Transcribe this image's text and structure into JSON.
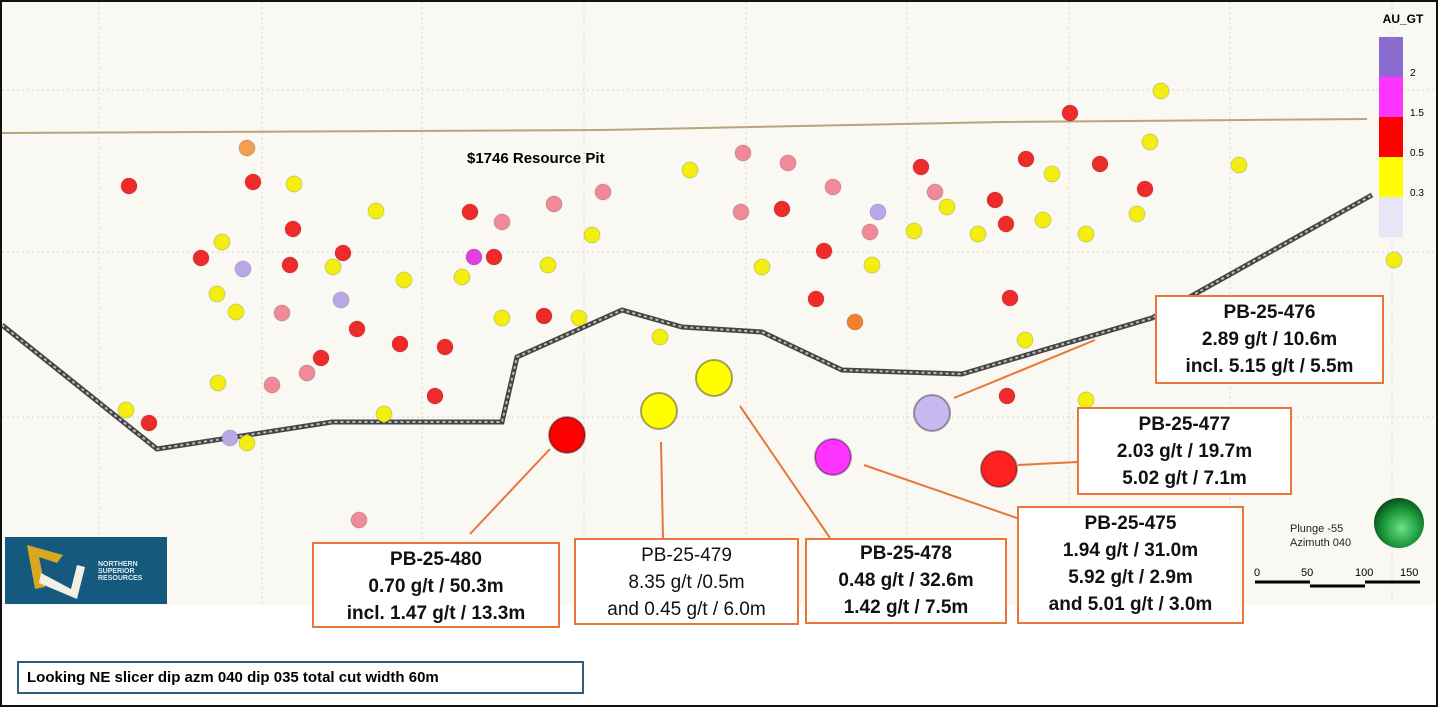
{
  "pit_label": "$1746 Resource Pit",
  "legend": {
    "title": "AU_GT",
    "bins": [
      {
        "label": "2",
        "color": "#8a6bd0"
      },
      {
        "label": "1.5",
        "color": "#ff33ff"
      },
      {
        "label": "0.5",
        "color": "#ff0000"
      },
      {
        "label": "0.3",
        "color": "#ffff00"
      },
      {
        "label": "",
        "color": "#e6e6f6"
      }
    ]
  },
  "orientation": {
    "plunge": "Plunge -55",
    "azimuth": "Azimuth 040"
  },
  "scale_bar": {
    "ticks": [
      "0",
      "50",
      "100",
      "150"
    ]
  },
  "logo": {
    "text": "NORTHERN SUPERIOR RESOURCES"
  },
  "caption": "Looking NE slicer dip azm 040 dip 035 total cut width 60m",
  "holes": [
    {
      "id": "PB-25-480",
      "lines": [
        "0.70 g/t / 50.3m",
        "incl. 1.47 g/t / 13.3m"
      ],
      "color": "#ff0000",
      "bold": true
    },
    {
      "id": "PB-25-479",
      "lines": [
        "8.35 g/t /0.5m",
        "and 0.45 g/t / 6.0m"
      ],
      "color": "#ffff00",
      "bold": false
    },
    {
      "id": "PB-25-478",
      "lines": [
        "0.48 g/t / 32.6m",
        "1.42 g/t / 7.5m"
      ],
      "color": "#ffff00",
      "bold": true
    },
    {
      "id": "PB-25-475",
      "lines": [
        "1.94 g/t / 31.0m",
        "5.92 g/t / 2.9m",
        "and 5.01 g/t / 3.0m"
      ],
      "color": "#ff33ff",
      "bold": true
    },
    {
      "id": "PB-25-477",
      "lines": [
        "2.03 g/t / 19.7m",
        "5.02 g/t / 7.1m"
      ],
      "color": "#c8b8f0",
      "bold": true
    },
    {
      "id": "PB-25-476",
      "lines": [
        "2.89 g/t / 10.6m",
        "incl. 5.15 g/t / 5.5m"
      ],
      "color": "#ff2020",
      "bold": true
    }
  ]
}
